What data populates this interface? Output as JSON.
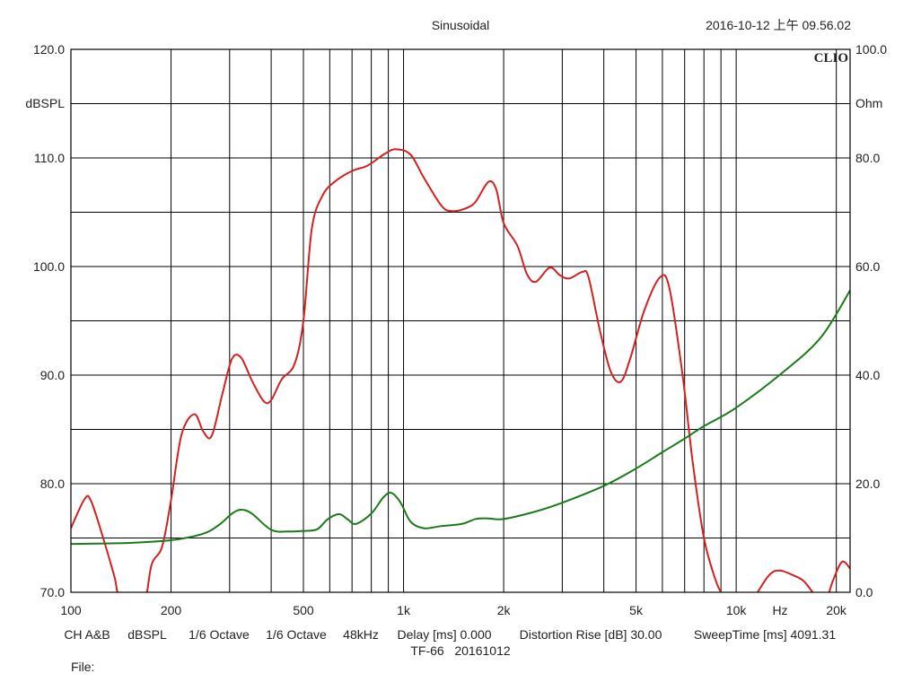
{
  "header": {
    "title": "Sinusoidal",
    "timestamp": "2016-10-12 上午 09.56.02",
    "brand": "CLIO"
  },
  "footer": {
    "settings_line": [
      "CH A&B",
      "dBSPL",
      "1/6 Octave",
      "1/6 Octave",
      "48kHz",
      "Delay [ms] 0.000",
      "Distortion Rise [dB] 30.00",
      "SweepTime [ms] 4091.31"
    ],
    "device_line": "TF-66   20161012",
    "file_label": "File:"
  },
  "chart_data": {
    "type": "line",
    "title": "Sinusoidal",
    "x_scale": "log",
    "xlim": [
      100,
      22000
    ],
    "x_tick_labels": [
      {
        "value": 100,
        "label": "100"
      },
      {
        "value": 200,
        "label": "200"
      },
      {
        "value": 500,
        "label": "500"
      },
      {
        "value": 1000,
        "label": "1k"
      },
      {
        "value": 2000,
        "label": "2k"
      },
      {
        "value": 5000,
        "label": "5k"
      },
      {
        "value": 10000,
        "label": "10k"
      },
      {
        "value": 20000,
        "label": "20k"
      }
    ],
    "x_unit_label": "Hz",
    "x_gridlines": [
      200,
      300,
      400,
      500,
      600,
      700,
      800,
      900,
      1000,
      2000,
      3000,
      4000,
      5000,
      6000,
      7000,
      8000,
      9000,
      10000,
      20000
    ],
    "left_axis": {
      "label": "dBSPL",
      "range": [
        70,
        120
      ],
      "ticks": [
        "120.0",
        "110.0",
        "100.0",
        "90.0",
        "80.0",
        "70.0"
      ]
    },
    "right_axis": {
      "label": "Ohm",
      "range": [
        0,
        100
      ],
      "ticks": [
        "100.0",
        "80.0",
        "60.0",
        "40.0",
        "20.0",
        "0.0"
      ]
    },
    "y_gridline_step": 5,
    "grid": true,
    "series": [
      {
        "color": "#d42020",
        "axis": "left",
        "points": [
          [
            100,
            75.9
          ],
          [
            110,
            78.6
          ],
          [
            115,
            78.4
          ],
          [
            125,
            75.0
          ],
          [
            135,
            71.5
          ],
          [
            142,
            69.0
          ],
          [
            165,
            69.0
          ],
          [
            175,
            72.6
          ],
          [
            188,
            74.2
          ],
          [
            200,
            78.5
          ],
          [
            215,
            84.5
          ],
          [
            235,
            86.4
          ],
          [
            250,
            84.8
          ],
          [
            265,
            84.4
          ],
          [
            285,
            88.2
          ],
          [
            305,
            91.5
          ],
          [
            325,
            91.6
          ],
          [
            350,
            89.5
          ],
          [
            380,
            87.6
          ],
          [
            400,
            87.7
          ],
          [
            430,
            89.6
          ],
          [
            470,
            91.0
          ],
          [
            500,
            95.0
          ],
          [
            530,
            103.5
          ],
          [
            570,
            106.5
          ],
          [
            620,
            107.8
          ],
          [
            700,
            108.8
          ],
          [
            780,
            109.3
          ],
          [
            880,
            110.4
          ],
          [
            950,
            110.8
          ],
          [
            1050,
            110.3
          ],
          [
            1150,
            108.2
          ],
          [
            1300,
            105.6
          ],
          [
            1400,
            105.1
          ],
          [
            1550,
            105.4
          ],
          [
            1650,
            106.0
          ],
          [
            1800,
            107.8
          ],
          [
            1900,
            107.1
          ],
          [
            2000,
            104.0
          ],
          [
            2200,
            101.9
          ],
          [
            2350,
            99.3
          ],
          [
            2500,
            98.6
          ],
          [
            2750,
            99.9
          ],
          [
            2950,
            99.2
          ],
          [
            3150,
            98.9
          ],
          [
            3450,
            99.5
          ],
          [
            3600,
            99.0
          ],
          [
            3900,
            94.0
          ],
          [
            4200,
            90.3
          ],
          [
            4500,
            89.4
          ],
          [
            4800,
            91.5
          ],
          [
            5300,
            96.0
          ],
          [
            5900,
            99.0
          ],
          [
            6300,
            98.0
          ],
          [
            6900,
            90.0
          ],
          [
            7400,
            82.0
          ],
          [
            8000,
            75.0
          ],
          [
            8700,
            71.0
          ],
          [
            9200,
            69.5
          ],
          [
            9800,
            68.0
          ],
          [
            11000,
            69.0
          ],
          [
            12500,
            71.5
          ],
          [
            13500,
            72.0
          ],
          [
            15000,
            71.5
          ],
          [
            16000,
            71.0
          ],
          [
            17500,
            69.5
          ],
          [
            18500,
            69.0
          ],
          [
            19500,
            71.0
          ],
          [
            20800,
            72.8
          ],
          [
            22000,
            72.2
          ]
        ]
      },
      {
        "color": "#1a7a1a",
        "axis": "right",
        "points": [
          [
            100,
            8.9
          ],
          [
            150,
            9.1
          ],
          [
            200,
            9.6
          ],
          [
            250,
            10.8
          ],
          [
            280,
            12.5
          ],
          [
            305,
            14.5
          ],
          [
            325,
            15.2
          ],
          [
            350,
            14.5
          ],
          [
            400,
            11.5
          ],
          [
            450,
            11.2
          ],
          [
            500,
            11.3
          ],
          [
            550,
            11.6
          ],
          [
            590,
            13.4
          ],
          [
            640,
            14.4
          ],
          [
            680,
            13.4
          ],
          [
            720,
            12.6
          ],
          [
            800,
            14.5
          ],
          [
            870,
            17.5
          ],
          [
            920,
            18.3
          ],
          [
            980,
            16.5
          ],
          [
            1050,
            13.0
          ],
          [
            1150,
            11.8
          ],
          [
            1300,
            12.2
          ],
          [
            1500,
            12.6
          ],
          [
            1650,
            13.5
          ],
          [
            1800,
            13.6
          ],
          [
            2000,
            13.5
          ],
          [
            2500,
            14.9
          ],
          [
            3000,
            16.5
          ],
          [
            4000,
            19.6
          ],
          [
            5000,
            22.8
          ],
          [
            6000,
            25.8
          ],
          [
            7000,
            28.3
          ],
          [
            8000,
            30.6
          ],
          [
            10000,
            34.0
          ],
          [
            14000,
            40.8
          ],
          [
            18000,
            47.0
          ],
          [
            22000,
            55.6
          ]
        ]
      }
    ]
  }
}
